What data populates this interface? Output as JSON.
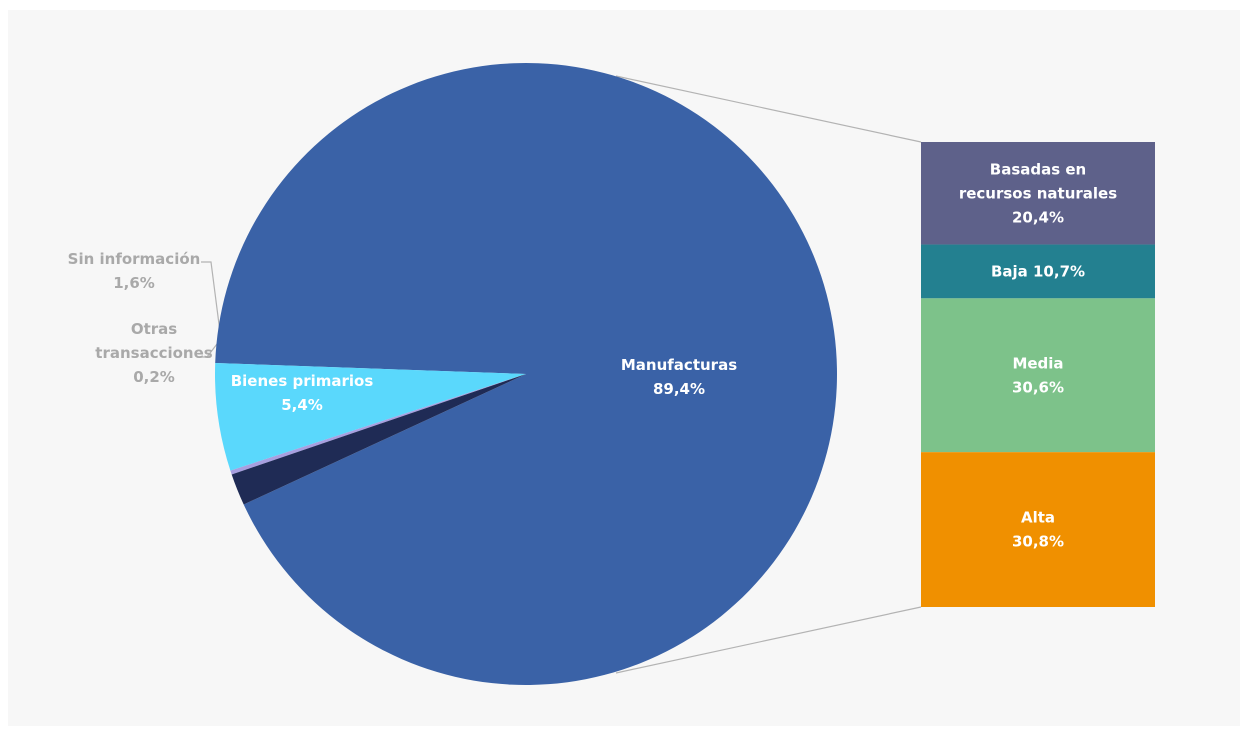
{
  "chart_data": [
    {
      "type": "pie",
      "title": "",
      "slices": [
        {
          "name_lines": [
            "Manufacturas"
          ],
          "value": 89.4,
          "value_label": "89,4%",
          "color": "#3a62a7"
        },
        {
          "name_lines": [
            "Bienes primarios"
          ],
          "value": 5.4,
          "value_label": "5,4%",
          "color": "#5ad8fc"
        },
        {
          "name_lines": [
            "Otras",
            "transacciones"
          ],
          "value": 0.2,
          "value_label": "0,2%",
          "color": "#a79fe0"
        },
        {
          "name_lines": [
            "Sin información"
          ],
          "value": 1.6,
          "value_label": "1,6%",
          "color": "#1f2b55"
        }
      ]
    },
    {
      "type": "bar",
      "orientation": "stacked-vertical",
      "parent_slice": "Manufacturas",
      "segments": [
        {
          "name_lines": [
            "Basadas en",
            "recursos naturales"
          ],
          "value": 20.4,
          "value_label": "20,4%",
          "color": "#5e618a"
        },
        {
          "name_lines": [
            "Baja"
          ],
          "value": 10.7,
          "value_label": "10,7%",
          "color": "#238090",
          "inline": true
        },
        {
          "name_lines": [
            "Media"
          ],
          "value": 30.6,
          "value_label": "30,6%",
          "color": "#7dc28a"
        },
        {
          "name_lines": [
            "Alta"
          ],
          "value": 30.8,
          "value_label": "30,8%",
          "color": "#f09000"
        }
      ]
    }
  ],
  "colors": {
    "background": "#f7f7f7",
    "connector": "#b3b3b3",
    "outside_label": "#a9a9a9",
    "inside_label": "#ffffff"
  }
}
